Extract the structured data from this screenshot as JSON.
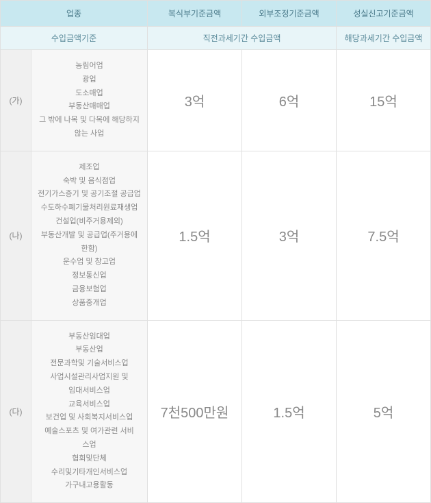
{
  "headers": {
    "row1": {
      "col1": "업종",
      "col2": "복식부기준금액",
      "col3": "외부조정기준금액",
      "col4": "성실신고기준금액"
    },
    "row2": {
      "col1": "수입금액기준",
      "col2": "직전과세기간 수입금액",
      "col3": "해당과세기간 수입금액"
    }
  },
  "rows": [
    {
      "category": "(가)",
      "businesses": [
        "농림어업",
        "광업",
        "도소매업",
        "부동산매매업",
        "그 밖에 나목 및 다목에 해당하지",
        "않는 사업"
      ],
      "val1": "3억",
      "val2": "6억",
      "val3": "15억"
    },
    {
      "category": "(나)",
      "businesses": [
        "제조업",
        "숙박 및 음식점업",
        "전기가스증기 및 공기조절 공급업",
        "수도하수폐기물처리원료재생업",
        "건설업(비주거용제외)",
        "부동산개발 및 공급업(주거용에",
        "한함)",
        "운수업 및 창고업",
        "정보통신업",
        "금융보험업",
        "상품중개업"
      ],
      "val1": "1.5억",
      "val2": "3억",
      "val3": "7.5억"
    },
    {
      "category": "(다)",
      "businesses": [
        "부동산임대업",
        "부동산업",
        "전문과학및 기술서비스업",
        "사업시설관리사업지원 및",
        "임대서비스업",
        "교육서비스업",
        "보건업 및 사회복지서비스업",
        "예술스포츠 및 여가관련 서비",
        "스업",
        "협회및단체",
        "수리및기타개인서비스업",
        "가구내고용활동"
      ],
      "val1": "7천500만원",
      "val2": "1.5억",
      "val3": "5억"
    }
  ]
}
